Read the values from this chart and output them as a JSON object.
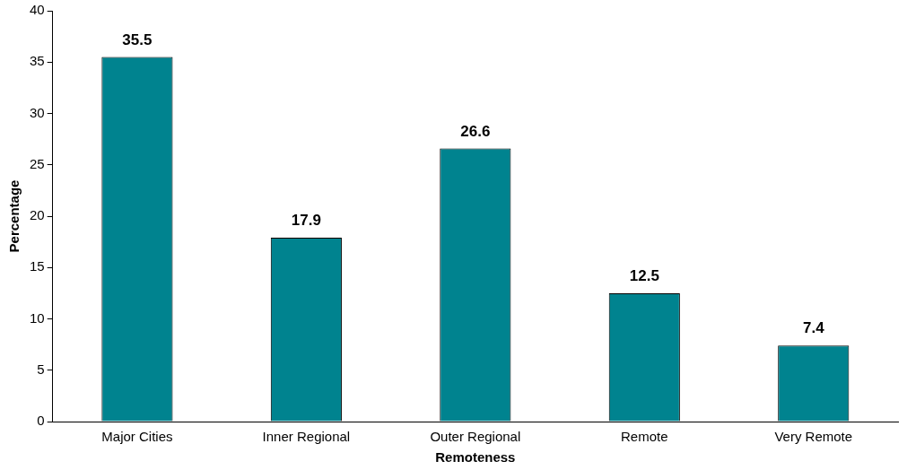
{
  "chart_data": {
    "type": "bar",
    "xlabel": "Remoteness",
    "ylabel": "Percentage",
    "categories": [
      "Major Cities",
      "Inner Regional",
      "Outer Regional",
      "Remote",
      "Very Remote"
    ],
    "values": [
      35.5,
      17.9,
      26.6,
      12.5,
      7.4
    ],
    "color": "#00838f",
    "ylim": [
      0,
      40
    ],
    "yticks": [
      0,
      5,
      10,
      15,
      20,
      25,
      30,
      35,
      40
    ],
    "grid": false,
    "legend": false,
    "data_labels": true
  }
}
